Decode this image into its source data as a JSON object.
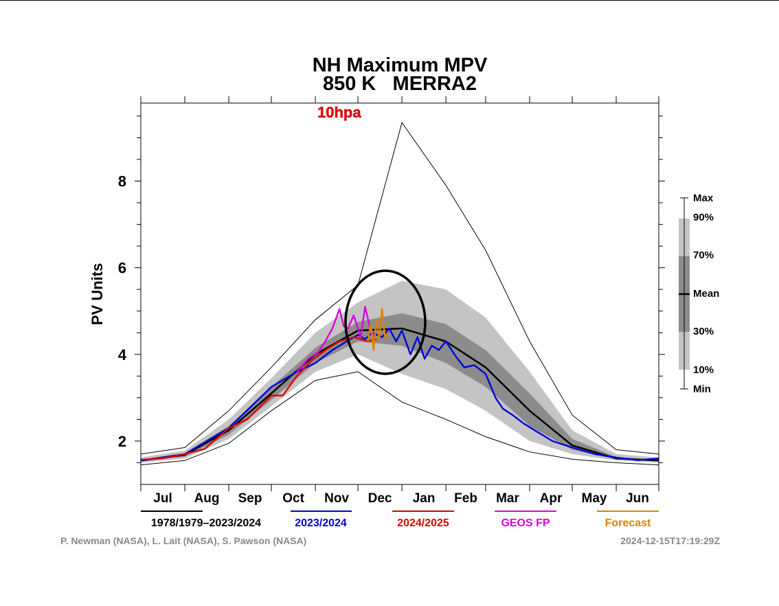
{
  "chart_data": {
    "type": "line",
    "title": "NH Maximum MPV",
    "subtitle": "850 K   MERRA2",
    "annotation": "10hpa",
    "ylabel": "PV Units",
    "xlabel": "",
    "ylim": [
      1.0,
      9.8
    ],
    "yticks": [
      2,
      4,
      6,
      8
    ],
    "months": [
      "Jul",
      "Aug",
      "Sep",
      "Oct",
      "Nov",
      "Dec",
      "Jan",
      "Feb",
      "Mar",
      "Apr",
      "May",
      "Jun"
    ],
    "x_unit": "day of season starting 1 Jul",
    "legend": [
      "1978/1979–2023/2024",
      "2023/2024",
      "2024/2025",
      "GEOS FP",
      "Forecast"
    ],
    "band_legend": [
      "Max",
      "90%",
      "70%",
      "Mean",
      "30%",
      "10%",
      "Min"
    ],
    "climatology": {
      "name": "1978/1979–2023/2024",
      "color": "#000000",
      "x": [
        0,
        31,
        62,
        92,
        123,
        153,
        184,
        215,
        243,
        274,
        304,
        335,
        365
      ],
      "mean": [
        1.55,
        1.68,
        2.25,
        3.1,
        4.0,
        4.55,
        4.6,
        4.3,
        3.7,
        2.7,
        1.9,
        1.6,
        1.55
      ],
      "p30": [
        1.53,
        1.64,
        2.15,
        2.95,
        3.8,
        4.3,
        4.2,
        3.8,
        3.25,
        2.35,
        1.8,
        1.58,
        1.53
      ],
      "p70": [
        1.57,
        1.72,
        2.35,
        3.25,
        4.15,
        4.75,
        4.95,
        4.7,
        4.1,
        3.1,
        2.05,
        1.63,
        1.57
      ],
      "p10": [
        1.5,
        1.6,
        2.05,
        2.8,
        3.6,
        4.0,
        3.55,
        3.2,
        2.7,
        2.0,
        1.7,
        1.55,
        1.5
      ],
      "p90": [
        1.62,
        1.78,
        2.5,
        3.45,
        4.5,
        5.2,
        5.7,
        5.5,
        4.85,
        3.6,
        2.25,
        1.7,
        1.62
      ],
      "min": [
        1.45,
        1.55,
        1.95,
        2.7,
        3.4,
        3.6,
        2.9,
        2.5,
        2.1,
        1.75,
        1.58,
        1.5,
        1.45
      ],
      "max": [
        1.7,
        1.85,
        2.7,
        3.7,
        4.8,
        5.6,
        9.35,
        7.9,
        6.4,
        4.3,
        2.6,
        1.8,
        1.7
      ]
    },
    "series": [
      {
        "name": "2023/2024",
        "color": "#0000dd",
        "x": [
          0,
          31,
          62,
          92,
          110,
          123,
          135,
          145,
          153,
          158,
          163,
          170,
          175,
          180,
          184,
          190,
          195,
          200,
          205,
          210,
          215,
          222,
          228,
          235,
          243,
          250,
          255,
          262,
          270,
          280,
          290,
          304,
          320,
          335,
          350,
          365
        ],
        "y": [
          1.55,
          1.7,
          2.3,
          3.25,
          3.6,
          3.8,
          4.1,
          4.3,
          4.45,
          4.35,
          4.5,
          4.4,
          4.6,
          4.3,
          4.55,
          4.0,
          4.4,
          3.9,
          4.2,
          4.1,
          4.3,
          3.95,
          3.7,
          3.75,
          3.55,
          3.0,
          2.75,
          2.6,
          2.4,
          2.2,
          2.0,
          1.85,
          1.7,
          1.62,
          1.56,
          1.6
        ]
      },
      {
        "name": "2024/2025",
        "color": "#dd0000",
        "x": [
          0,
          15,
          31,
          45,
          62,
          75,
          92,
          100,
          110,
          120,
          130,
          140,
          150,
          155,
          160,
          166
        ],
        "y": [
          1.57,
          1.6,
          1.7,
          1.82,
          2.3,
          2.5,
          3.05,
          3.05,
          3.5,
          3.85,
          4.1,
          4.3,
          4.4,
          4.35,
          4.3,
          4.35
        ]
      },
      {
        "name": "GEOS FP",
        "color": "#dd00dd",
        "x": [
          110,
          118,
          125,
          130,
          135,
          140,
          143,
          146,
          150,
          155,
          158,
          162,
          165
        ],
        "y": [
          3.6,
          3.9,
          4.05,
          4.3,
          4.6,
          5.05,
          4.65,
          4.6,
          4.9,
          4.4,
          5.1,
          4.55,
          4.4
        ]
      },
      {
        "name": "Forecast",
        "color": "#e08000",
        "x": [
          160,
          162,
          164,
          166,
          168,
          170,
          172,
          174
        ],
        "y": [
          4.3,
          4.7,
          4.1,
          4.8,
          4.35,
          5.05,
          4.4,
          4.5
        ]
      }
    ]
  },
  "credits": "P. Newman (NASA), L. Lait (NASA), S. Pawson (NASA)",
  "timestamp": "2024-12-15T17:19:29Z",
  "colors": {
    "band_outer": "#c4c4c4",
    "band_inner": "#8c8c8c",
    "circle": "#000000",
    "annotation": "#dd1111",
    "credits": "#888888"
  }
}
